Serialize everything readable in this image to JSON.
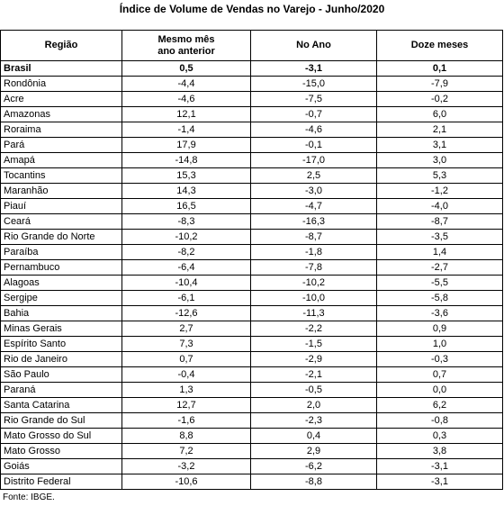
{
  "title": "Índice de Volume de Vendas no Varejo - Junho/2020",
  "table": {
    "header": [
      "Região",
      "Mesmo mês ano anterior",
      "No Ano",
      "Doze meses"
    ],
    "rows": [
      [
        "Brasil",
        "0,5",
        "-3,1",
        "0,1"
      ],
      [
        "Rondônia",
        "-4,4",
        "-15,0",
        "-7,9"
      ],
      [
        "Acre",
        "-4,6",
        "-7,5",
        "-0,2"
      ],
      [
        "Amazonas",
        "12,1",
        "-0,7",
        "6,0"
      ],
      [
        "Roraima",
        "-1,4",
        "-4,6",
        "2,1"
      ],
      [
        "Pará",
        "17,9",
        "-0,1",
        "3,1"
      ],
      [
        "Amapá",
        "-14,8",
        "-17,0",
        "3,0"
      ],
      [
        "Tocantins",
        "15,3",
        "2,5",
        "5,3"
      ],
      [
        "Maranhão",
        "14,3",
        "-3,0",
        "-1,2"
      ],
      [
        "Piauí",
        "16,5",
        "-4,7",
        "-4,0"
      ],
      [
        "Ceará",
        "-8,3",
        "-16,3",
        "-8,7"
      ],
      [
        "Rio Grande do Norte",
        "-10,2",
        "-8,7",
        "-3,5"
      ],
      [
        "Paraíba",
        "-8,2",
        "-1,8",
        "1,4"
      ],
      [
        "Pernambuco",
        "-6,4",
        "-7,8",
        "-2,7"
      ],
      [
        "Alagoas",
        "-10,4",
        "-10,2",
        "-5,5"
      ],
      [
        "Sergipe",
        "-6,1",
        "-10,0",
        "-5,8"
      ],
      [
        "Bahia",
        "-12,6",
        "-11,3",
        "-3,6"
      ],
      [
        "Minas Gerais",
        "2,7",
        "-2,2",
        "0,9"
      ],
      [
        "Espírito Santo",
        "7,3",
        "-1,5",
        "1,0"
      ],
      [
        "Rio de Janeiro",
        "0,7",
        "-2,9",
        "-0,3"
      ],
      [
        "São Paulo",
        "-0,4",
        "-2,1",
        "0,7"
      ],
      [
        "Paraná",
        "1,3",
        "-0,5",
        "0,0"
      ],
      [
        "Santa Catarina",
        "12,7",
        "2,0",
        "6,2"
      ],
      [
        "Rio Grande do Sul",
        "-1,6",
        "-2,3",
        "-0,8"
      ],
      [
        "Mato Grosso do Sul",
        "8,8",
        "0,4",
        "0,3"
      ],
      [
        "Mato Grosso",
        "7,2",
        "2,9",
        "3,8"
      ],
      [
        "Goiás",
        "-3,2",
        "-6,2",
        "-3,1"
      ],
      [
        "Distrito Federal",
        "-10,6",
        "-8,8",
        "-3,1"
      ]
    ]
  },
  "source": "Fonte: IBGE."
}
